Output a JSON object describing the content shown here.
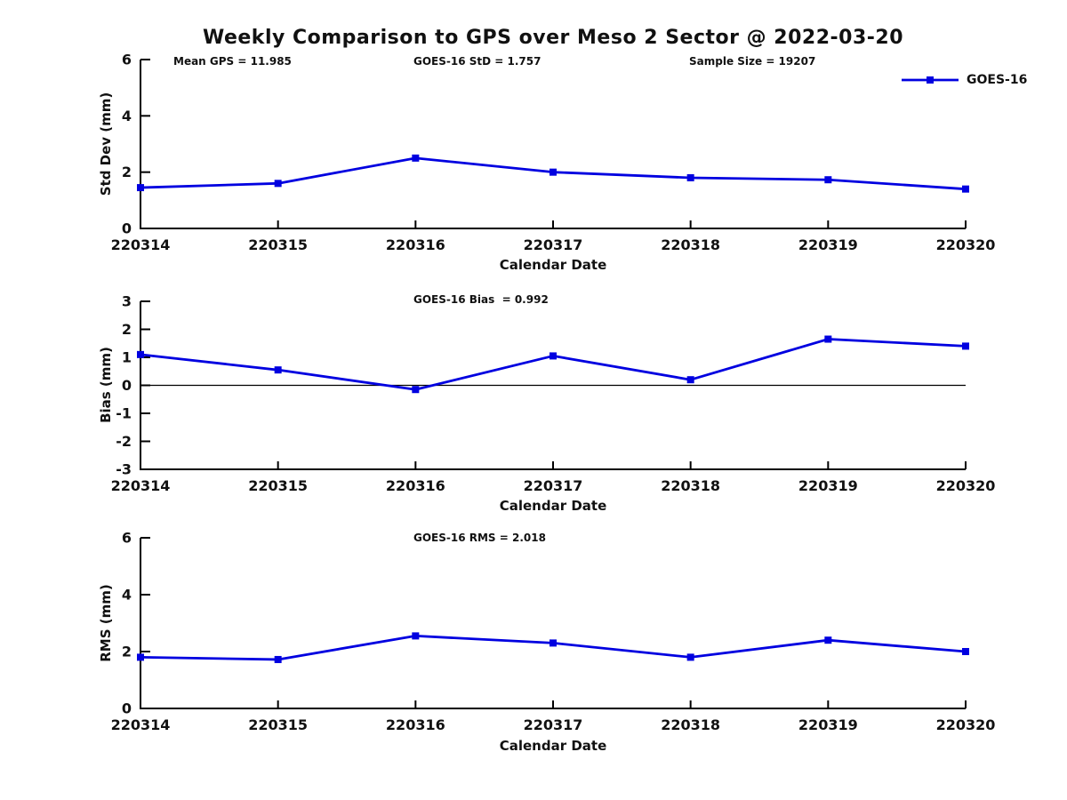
{
  "title": "Weekly Comparison to GPS over Meso 2 Sector @ 2022-03-20",
  "legend": {
    "label": "GOES-16"
  },
  "colors": {
    "series": "#0000E0",
    "axis": "#000000",
    "zero_line": "#000000"
  },
  "chart_data": [
    {
      "type": "line",
      "name": "std-dev",
      "annotations": [
        "Mean GPS = 11.985",
        "GOES-16 StD = 1.757",
        "Sample Size = 19207"
      ],
      "categories": [
        "220314",
        "220315",
        "220316",
        "220317",
        "220318",
        "220319",
        "220320"
      ],
      "series": [
        {
          "name": "GOES-16",
          "values": [
            1.45,
            1.6,
            2.5,
            2.0,
            1.8,
            1.73,
            1.4
          ]
        }
      ],
      "xlabel": "Calendar Date",
      "ylabel": "Std Dev (mm)",
      "ylim": [
        0,
        6
      ],
      "yticks": [
        0,
        2,
        4,
        6
      ],
      "zero_line": false,
      "legend_position": "top-right"
    },
    {
      "type": "line",
      "name": "bias",
      "annotations": [
        "GOES-16 Bias  = 0.992"
      ],
      "categories": [
        "220314",
        "220315",
        "220316",
        "220317",
        "220318",
        "220319",
        "220320"
      ],
      "series": [
        {
          "name": "GOES-16",
          "values": [
            1.1,
            0.55,
            -0.15,
            1.05,
            0.2,
            1.65,
            1.4
          ]
        }
      ],
      "xlabel": "Calendar Date",
      "ylabel": "Bias (mm)",
      "ylim": [
        -3,
        3
      ],
      "yticks": [
        3,
        2,
        1,
        0,
        -1,
        -2,
        -3
      ],
      "zero_line": true,
      "legend_position": "none"
    },
    {
      "type": "line",
      "name": "rms",
      "annotations": [
        "GOES-16 RMS = 2.018"
      ],
      "categories": [
        "220314",
        "220315",
        "220316",
        "220317",
        "220318",
        "220319",
        "220320"
      ],
      "series": [
        {
          "name": "GOES-16",
          "values": [
            1.8,
            1.72,
            2.55,
            2.3,
            1.8,
            2.4,
            2.0
          ]
        }
      ],
      "xlabel": "Calendar Date",
      "ylabel": "RMS (mm)",
      "ylim": [
        0,
        6
      ],
      "yticks": [
        0,
        2,
        4,
        6
      ],
      "zero_line": false,
      "legend_position": "none"
    }
  ]
}
